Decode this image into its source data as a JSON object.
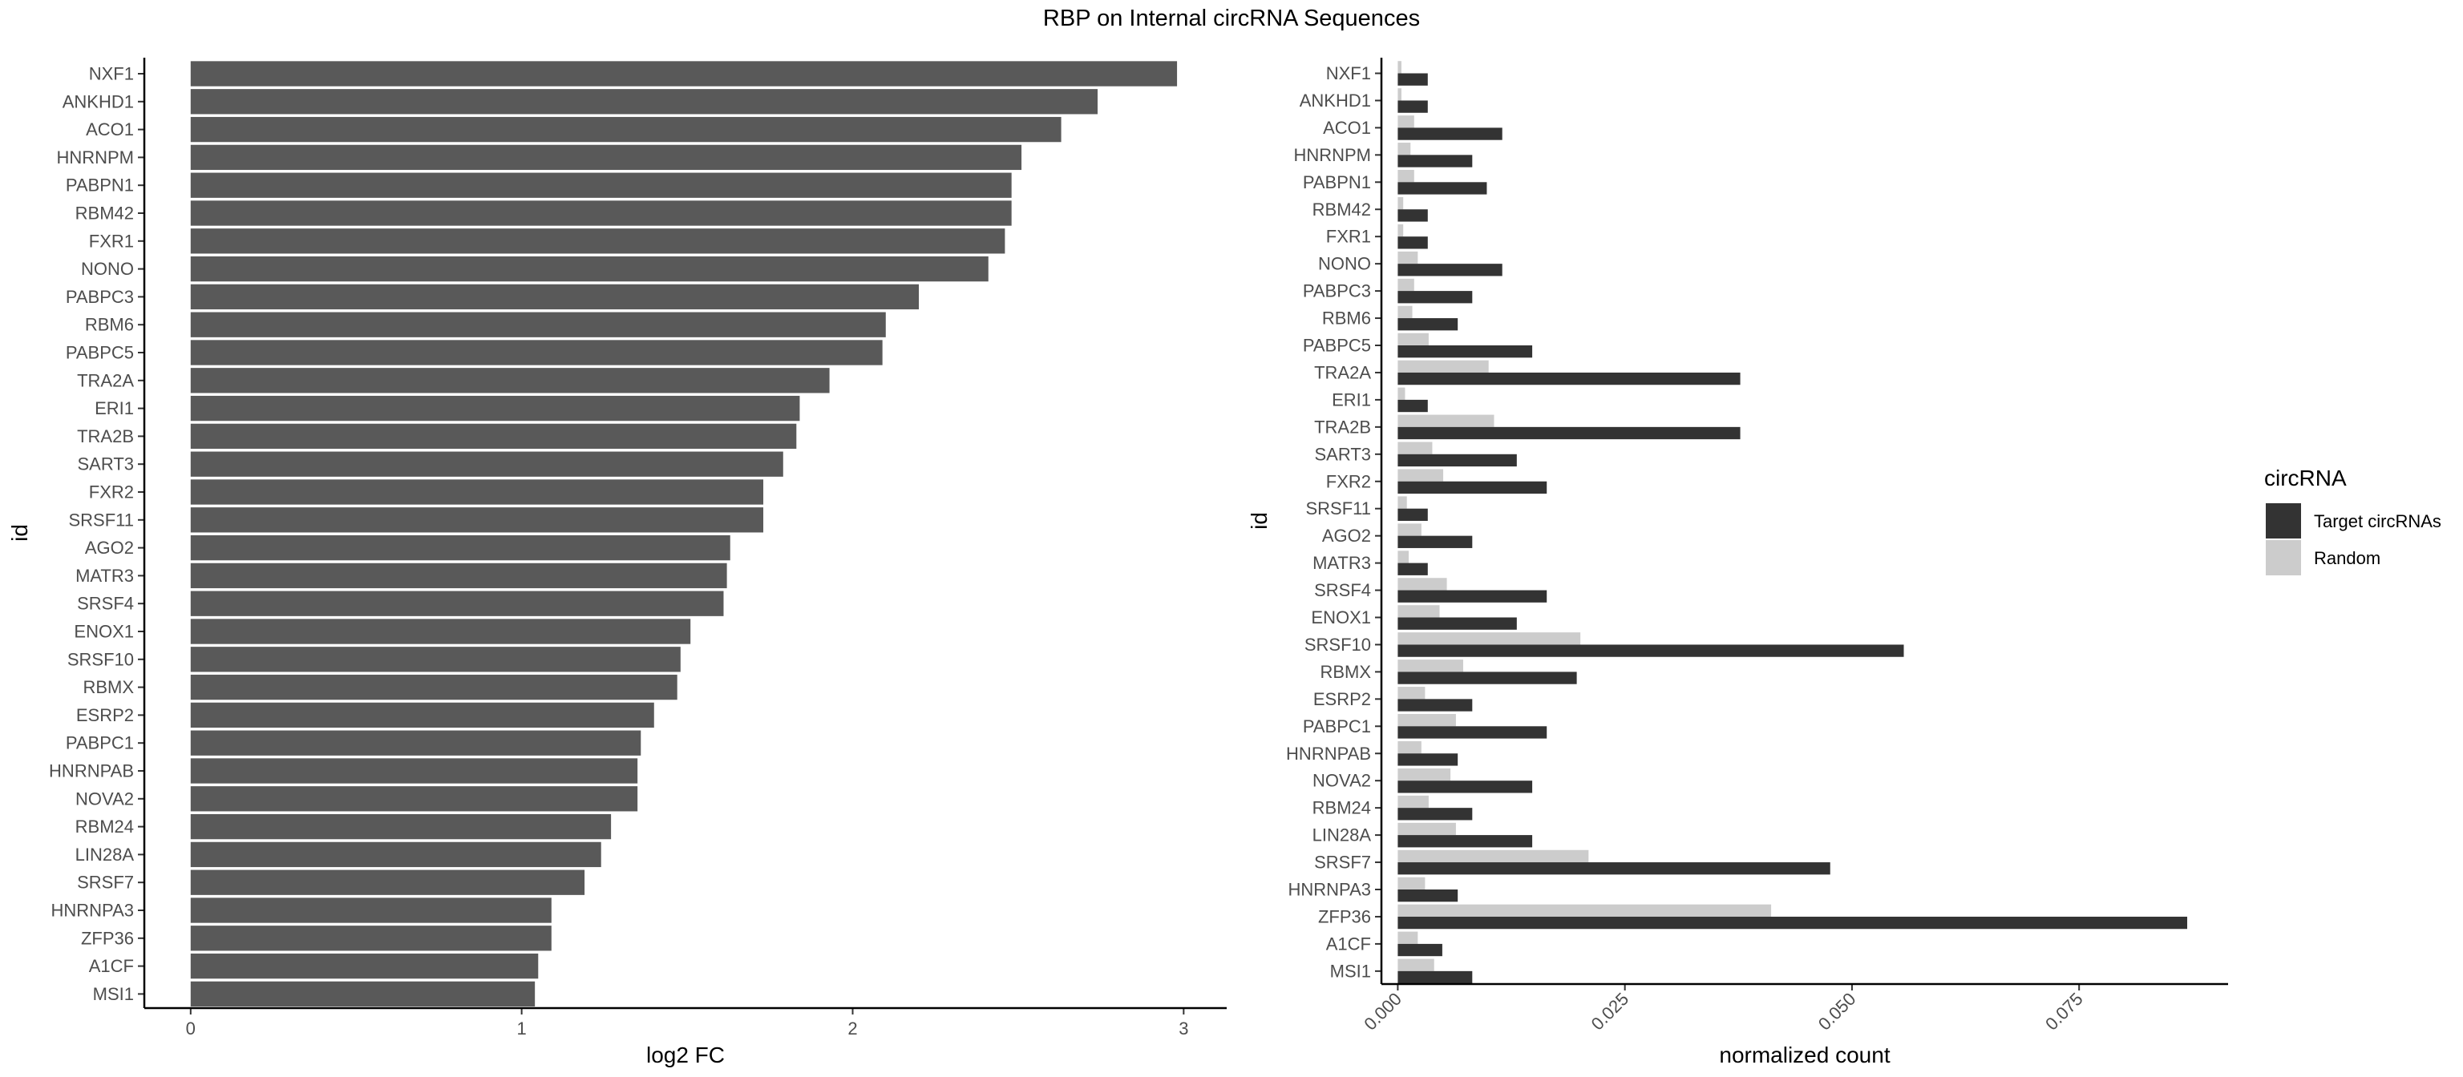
{
  "figure": {
    "title": "RBP on Internal circRNA Sequences"
  },
  "colors": {
    "left_bar": "#595959",
    "target": "#333333",
    "random": "#cccccc",
    "axis": "#000000",
    "tick_text": "#4d4d4d"
  },
  "chart_data": [
    {
      "type": "bar",
      "orientation": "horizontal",
      "xlabel": "log2 FC",
      "ylabel": "id",
      "xlim": [
        -0.14,
        3.13
      ],
      "xticks": [
        0,
        1,
        2,
        3
      ],
      "xtick_labels": [
        "0",
        "1",
        "2",
        "3"
      ],
      "grid": false,
      "categories": [
        "NXF1",
        "ANKHD1",
        "ACO1",
        "HNRNPM",
        "PABPN1",
        "RBM42",
        "FXR1",
        "NONO",
        "PABPC3",
        "RBM6",
        "PABPC5",
        "TRA2A",
        "ERI1",
        "TRA2B",
        "SART3",
        "FXR2",
        "SRSF11",
        "AGO2",
        "MATR3",
        "SRSF4",
        "ENOX1",
        "SRSF10",
        "RBMX",
        "ESRP2",
        "PABPC1",
        "HNRNPAB",
        "NOVA2",
        "RBM24",
        "LIN28A",
        "SRSF7",
        "HNRNPA3",
        "ZFP36",
        "A1CF",
        "MSI1"
      ],
      "values": [
        2.98,
        2.74,
        2.63,
        2.51,
        2.48,
        2.48,
        2.46,
        2.41,
        2.2,
        2.1,
        2.09,
        1.93,
        1.84,
        1.83,
        1.79,
        1.73,
        1.73,
        1.63,
        1.62,
        1.61,
        1.51,
        1.48,
        1.47,
        1.4,
        1.36,
        1.35,
        1.35,
        1.27,
        1.24,
        1.19,
        1.09,
        1.09,
        1.05,
        1.04
      ]
    },
    {
      "type": "bar",
      "orientation": "horizontal",
      "grouped": true,
      "xlabel": "normalized count",
      "ylabel": "id",
      "xlim": [
        -0.0018,
        0.0914
      ],
      "xticks": [
        0,
        0.025,
        0.05,
        0.075
      ],
      "xtick_labels": [
        "0.000",
        "0.025",
        "0.050",
        "0.075"
      ],
      "grid": false,
      "categories": [
        "NXF1",
        "ANKHD1",
        "ACO1",
        "HNRNPM",
        "PABPN1",
        "RBM42",
        "FXR1",
        "NONO",
        "PABPC3",
        "RBM6",
        "PABPC5",
        "TRA2A",
        "ERI1",
        "TRA2B",
        "SART3",
        "FXR2",
        "SRSF11",
        "AGO2",
        "MATR3",
        "SRSF4",
        "ENOX1",
        "SRSF10",
        "RBMX",
        "ESRP2",
        "PABPC1",
        "HNRNPAB",
        "NOVA2",
        "RBM24",
        "LIN28A",
        "SRSF7",
        "HNRNPA3",
        "ZFP36",
        "A1CF",
        "MSI1"
      ],
      "legend": {
        "title": "circRNA",
        "position": "right"
      },
      "series": [
        {
          "name": "Target circRNAs",
          "values": [
            0.0033,
            0.0033,
            0.0115,
            0.0082,
            0.0098,
            0.0033,
            0.0033,
            0.0115,
            0.0082,
            0.0066,
            0.0148,
            0.0377,
            0.0033,
            0.0377,
            0.0131,
            0.0164,
            0.0033,
            0.0082,
            0.0033,
            0.0164,
            0.0131,
            0.0557,
            0.0197,
            0.0082,
            0.0164,
            0.0066,
            0.0148,
            0.0082,
            0.0148,
            0.0476,
            0.0066,
            0.0869,
            0.0049,
            0.0082
          ]
        },
        {
          "name": "Random",
          "values": [
            0.0004,
            0.0004,
            0.0018,
            0.0014,
            0.0018,
            0.0006,
            0.0006,
            0.0022,
            0.0018,
            0.0016,
            0.0034,
            0.01,
            0.0008,
            0.0106,
            0.0038,
            0.005,
            0.001,
            0.0026,
            0.0012,
            0.0054,
            0.0046,
            0.0201,
            0.0072,
            0.003,
            0.0064,
            0.0026,
            0.0058,
            0.0034,
            0.0064,
            0.021,
            0.003,
            0.0411,
            0.0022,
            0.004
          ]
        }
      ]
    }
  ]
}
